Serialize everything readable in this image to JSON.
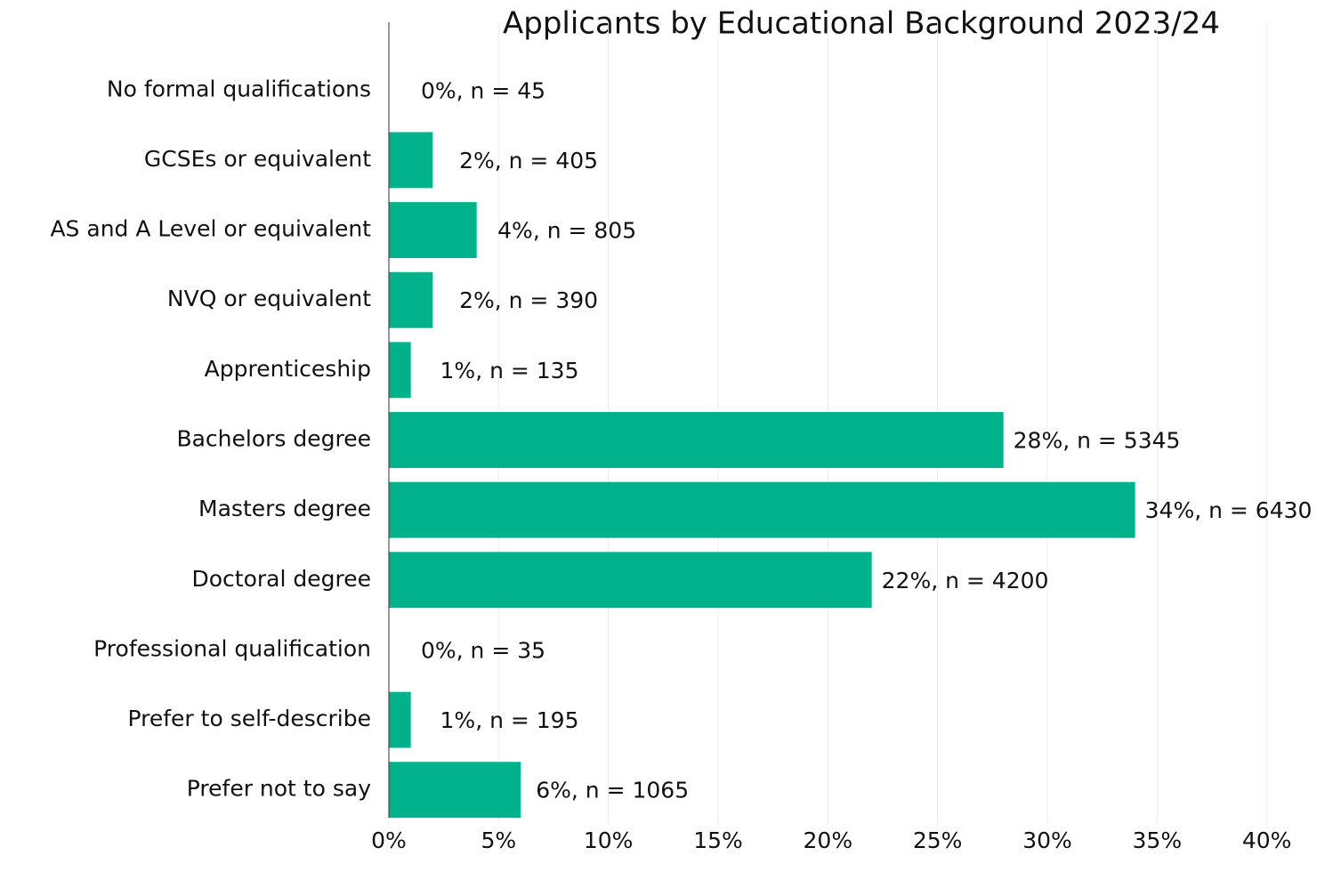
{
  "chart_data": {
    "type": "hbar",
    "title": "Applicants by Educational Background 2023/24",
    "categories": [
      "No formal qualifications",
      "GCSEs or equivalent",
      "AS and A Level or equivalent",
      "NVQ or equivalent",
      "Apprenticeship",
      "Bachelors degree",
      "Masters degree",
      "Doctoral degree",
      "Professional qualification",
      "Prefer to self-describe",
      "Prefer not to say"
    ],
    "values": [
      0,
      2,
      4,
      2,
      1,
      28,
      34,
      22,
      0,
      1,
      6
    ],
    "value_labels": [
      "0%, n = 45",
      "2%, n = 405",
      "4%, n = 805",
      "2%, n = 390",
      "1%, n = 135",
      "28%, n = 5345",
      "34%, n = 6430",
      "22%, n = 4200",
      "0%, n = 35",
      "1%, n = 195",
      "6%, n = 1065"
    ],
    "color": "#00b28c",
    "xlim": [
      0,
      42
    ],
    "xticks": [
      {
        "value": 0,
        "label": "0%"
      },
      {
        "value": 5,
        "label": "5%"
      },
      {
        "value": 10,
        "label": "10%"
      },
      {
        "value": 15,
        "label": "15%"
      },
      {
        "value": 20,
        "label": "20%"
      },
      {
        "value": 25,
        "label": "25%"
      },
      {
        "value": 30,
        "label": "30%"
      },
      {
        "value": 35,
        "label": "35%"
      },
      {
        "value": 40,
        "label": "40%"
      }
    ],
    "grid": true
  }
}
